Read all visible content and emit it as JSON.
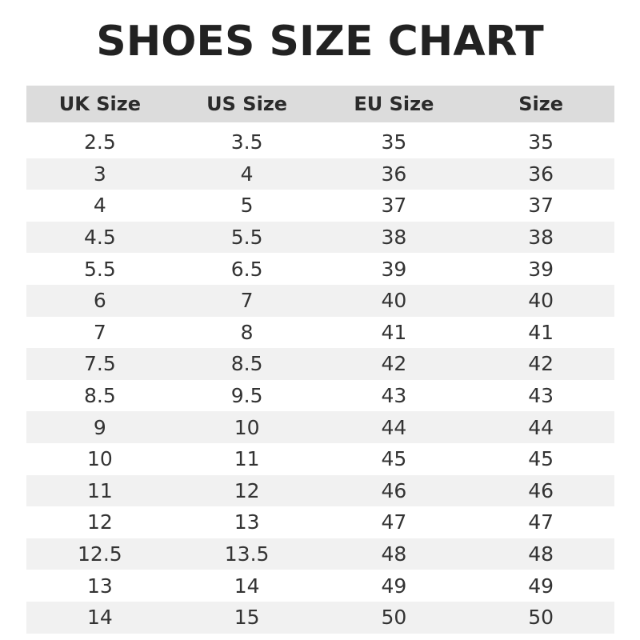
{
  "title": "SHOES SIZE CHART",
  "chart_data": {
    "type": "table",
    "title": "SHOES SIZE CHART",
    "columns": [
      "UK Size",
      "US Size",
      "EU Size",
      "Size"
    ],
    "rows": [
      [
        "2.5",
        "3.5",
        "35",
        "35"
      ],
      [
        "3",
        "4",
        "36",
        "36"
      ],
      [
        "4",
        "5",
        "37",
        "37"
      ],
      [
        "4.5",
        "5.5",
        "38",
        "38"
      ],
      [
        "5.5",
        "6.5",
        "39",
        "39"
      ],
      [
        "6",
        "7",
        "40",
        "40"
      ],
      [
        "7",
        "8",
        "41",
        "41"
      ],
      [
        "7.5",
        "8.5",
        "42",
        "42"
      ],
      [
        "8.5",
        "9.5",
        "43",
        "43"
      ],
      [
        "9",
        "10",
        "44",
        "44"
      ],
      [
        "10",
        "11",
        "45",
        "45"
      ],
      [
        "11",
        "12",
        "46",
        "46"
      ],
      [
        "12",
        "13",
        "47",
        "47"
      ],
      [
        "12.5",
        "13.5",
        "48",
        "48"
      ],
      [
        "13",
        "14",
        "49",
        "49"
      ],
      [
        "14",
        "15",
        "50",
        "50"
      ]
    ],
    "colors": {
      "header_bg": "#dcdcdc",
      "stripe_bg": "#f1f1f1"
    }
  }
}
